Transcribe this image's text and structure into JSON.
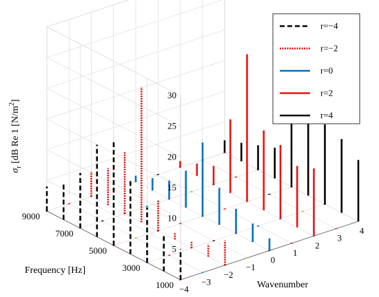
{
  "chart_data": {
    "type": "3d-stem",
    "title": "",
    "xlabel": "Wavenumber",
    "ylabel": "Frequency [Hz]",
    "zlabel": "σ_r [dB Re 1 [N/m^2]",
    "zlabel_parts": {
      "sym": "σ",
      "sub": "r",
      "text": " [dB Re 1 [N/m",
      "sup": "2",
      "end": "]"
    },
    "xlim": [
      -4,
      4
    ],
    "ylim": [
      1000,
      9000
    ],
    "zlim": [
      0,
      30
    ],
    "x_ticks": [
      "−4",
      "−3",
      "−2",
      "−1",
      "0",
      "1",
      "2",
      "3",
      "4"
    ],
    "y_ticks": [
      "1000",
      "3000",
      "5000",
      "7000",
      "9000"
    ],
    "z_ticks": [
      "5",
      "10",
      "15",
      "20",
      "25",
      "30"
    ],
    "grid": true,
    "legend_position": "top-right",
    "series": [
      {
        "name": "r=−4",
        "r": -4,
        "color": "#000000",
        "style": "dashed",
        "points": [
          [
            1000,
            5
          ],
          [
            2000,
            6
          ],
          [
            3000,
            9
          ],
          [
            4000,
            12
          ],
          [
            5000,
            17
          ],
          [
            6000,
            15
          ],
          [
            7000,
            9
          ],
          [
            8000,
            6
          ],
          [
            9000,
            4
          ]
        ]
      },
      {
        "name": "r=−2",
        "r": -2,
        "color": "#e00000",
        "style": "dotted",
        "points": [
          [
            1000,
            4
          ],
          [
            2000,
            2
          ],
          [
            3000,
            1
          ],
          [
            4000,
            1
          ],
          [
            5000,
            5
          ],
          [
            6000,
            22
          ],
          [
            7000,
            10
          ],
          [
            8000,
            6
          ],
          [
            9000,
            4
          ]
        ]
      },
      {
        "name": "r=0",
        "r": 0,
        "color": "#0070c0",
        "style": "solid",
        "points": [
          [
            1000,
            2
          ],
          [
            2000,
            3
          ],
          [
            3000,
            4
          ],
          [
            4000,
            6
          ],
          [
            5000,
            12
          ],
          [
            6000,
            6
          ],
          [
            7000,
            3
          ],
          [
            8000,
            2
          ],
          [
            9000,
            1
          ]
        ]
      },
      {
        "name": "r=2",
        "r": 2,
        "color": "#ee1111",
        "style": "solid",
        "points": [
          [
            1000,
            11
          ],
          [
            2000,
            10
          ],
          [
            3000,
            12
          ],
          [
            4000,
            13
          ],
          [
            5000,
            24
          ],
          [
            6000,
            12
          ],
          [
            7000,
            3
          ],
          [
            8000,
            2
          ],
          [
            9000,
            1
          ]
        ]
      },
      {
        "name": "r=4",
        "r": 4,
        "color": "#000000",
        "style": "solid",
        "points": [
          [
            1000,
            10
          ],
          [
            2000,
            12
          ],
          [
            3000,
            13
          ],
          [
            4000,
            14
          ],
          [
            5000,
            22
          ],
          [
            6000,
            5
          ],
          [
            7000,
            4
          ],
          [
            8000,
            3
          ],
          [
            9000,
            2
          ]
        ]
      }
    ]
  }
}
